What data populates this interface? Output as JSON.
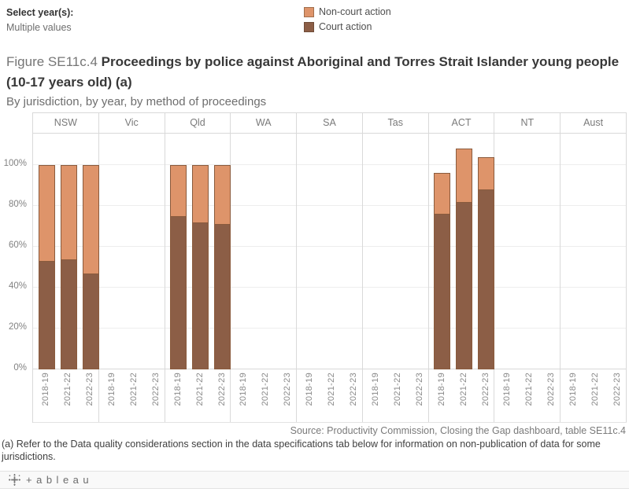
{
  "controls": {
    "label": "Select year(s):",
    "value": "Multiple values"
  },
  "legend": {
    "items": [
      {
        "label": "Non-court action",
        "color": "#DE946A"
      },
      {
        "label": "Court action",
        "color": "#8C5E46"
      }
    ]
  },
  "title": {
    "prefix": "Figure SE11c.4 ",
    "main": "Proceedings by police against Aboriginal and Torres Strait Islander young people (10-17 years old) (a)",
    "subtitle": "By jurisdiction, by year, by method of proceedings"
  },
  "chart_data": {
    "type": "bar",
    "stacked": true,
    "title": "Figure SE11c.4 Proceedings by police against Aboriginal and Torres Strait Islander young people (10-17 years old) (a)",
    "subtitle": "By jurisdiction, by year, by method of proceedings",
    "categories": [
      "NSW",
      "Vic",
      "Qld",
      "WA",
      "SA",
      "Tas",
      "ACT",
      "NT",
      "Aust"
    ],
    "x_years": [
      "2018-19",
      "2021-22",
      "2022-23"
    ],
    "yticks": [
      0,
      20,
      40,
      60,
      80,
      100
    ],
    "ytick_labels": [
      "0%",
      "20%",
      "40%",
      "60%",
      "80%",
      "100%"
    ],
    "ylim": [
      0,
      115
    ],
    "grid": true,
    "legend_position": "top",
    "units": "percent",
    "series": [
      {
        "name": "Court action",
        "color": "#8C5E46",
        "values": [
          [
            53,
            54,
            47
          ],
          [
            null,
            null,
            null
          ],
          [
            75,
            72,
            71
          ],
          [
            null,
            null,
            null
          ],
          [
            null,
            null,
            null
          ],
          [
            null,
            null,
            null
          ],
          [
            76,
            82,
            88
          ],
          [
            null,
            null,
            null
          ],
          [
            null,
            null,
            null
          ]
        ]
      },
      {
        "name": "Non-court action",
        "color": "#DE946A",
        "values": [
          [
            47,
            46,
            53
          ],
          [
            null,
            null,
            null
          ],
          [
            25,
            28,
            29
          ],
          [
            null,
            null,
            null
          ],
          [
            null,
            null,
            null
          ],
          [
            null,
            null,
            null
          ],
          [
            20,
            26,
            16
          ],
          [
            null,
            null,
            null
          ],
          [
            null,
            null,
            null
          ]
        ]
      }
    ]
  },
  "source": "Source: Productivity Commission, Closing the Gap dashboard, table SE11c.4",
  "footnote": "(a) Refer to the Data quality considerations section in the data specifications tab below for information on non-publication of data for some jurisdictions.",
  "footer": {
    "wordmark": "+ableau"
  }
}
